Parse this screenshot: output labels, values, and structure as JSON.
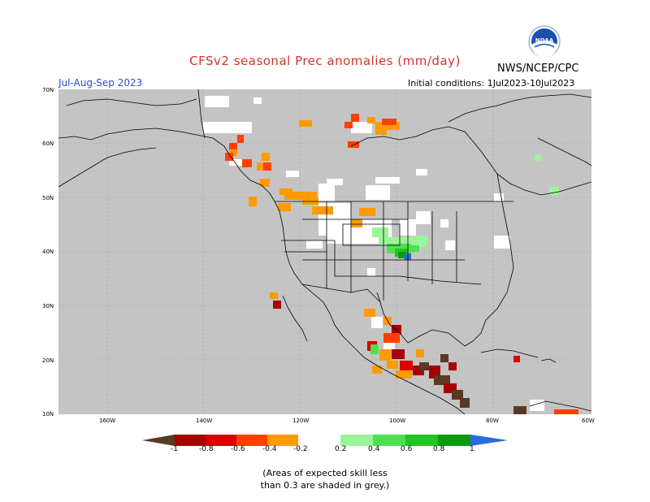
{
  "header": {
    "title": "CFSv2 seasonal Prec anomalies (mm/day)",
    "agency": "NWS/NCEP/CPC",
    "period": "Jul-Aug-Sep 2023",
    "initial_conditions": "Initial conditions: 1Jul2023-10Jul2023",
    "logo_text": "NOAA"
  },
  "map": {
    "lat_labels": [
      "70N",
      "60N",
      "50N",
      "40N",
      "30N",
      "20N",
      "10N"
    ],
    "lon_labels": [
      "160W",
      "140W",
      "120W",
      "100W",
      "80W",
      "60W"
    ],
    "grey_meaning": "skill below 0.3",
    "colors": {
      "ocean_land_grey": "#c4c4c4",
      "white": "#ffffff",
      "borders": "#000000"
    }
  },
  "colorbar": {
    "tick_labels": [
      "-1",
      "-0.8",
      "-0.6",
      "-0.4",
      "-0.2",
      "0.2",
      "0.4",
      "0.6",
      "0.8",
      "1"
    ],
    "colors": [
      "#5a3a24",
      "#a80000",
      "#d80000",
      "#ff4000",
      "#ff9a00",
      "#ffffff",
      "#9af59a",
      "#4ee04e",
      "#22c322",
      "#0e9a0e",
      "#2a6ae0"
    ]
  },
  "footnote": {
    "line1": "(Areas of expected skill less",
    "line2": "than 0.3 are shaded in grey.)"
  }
}
